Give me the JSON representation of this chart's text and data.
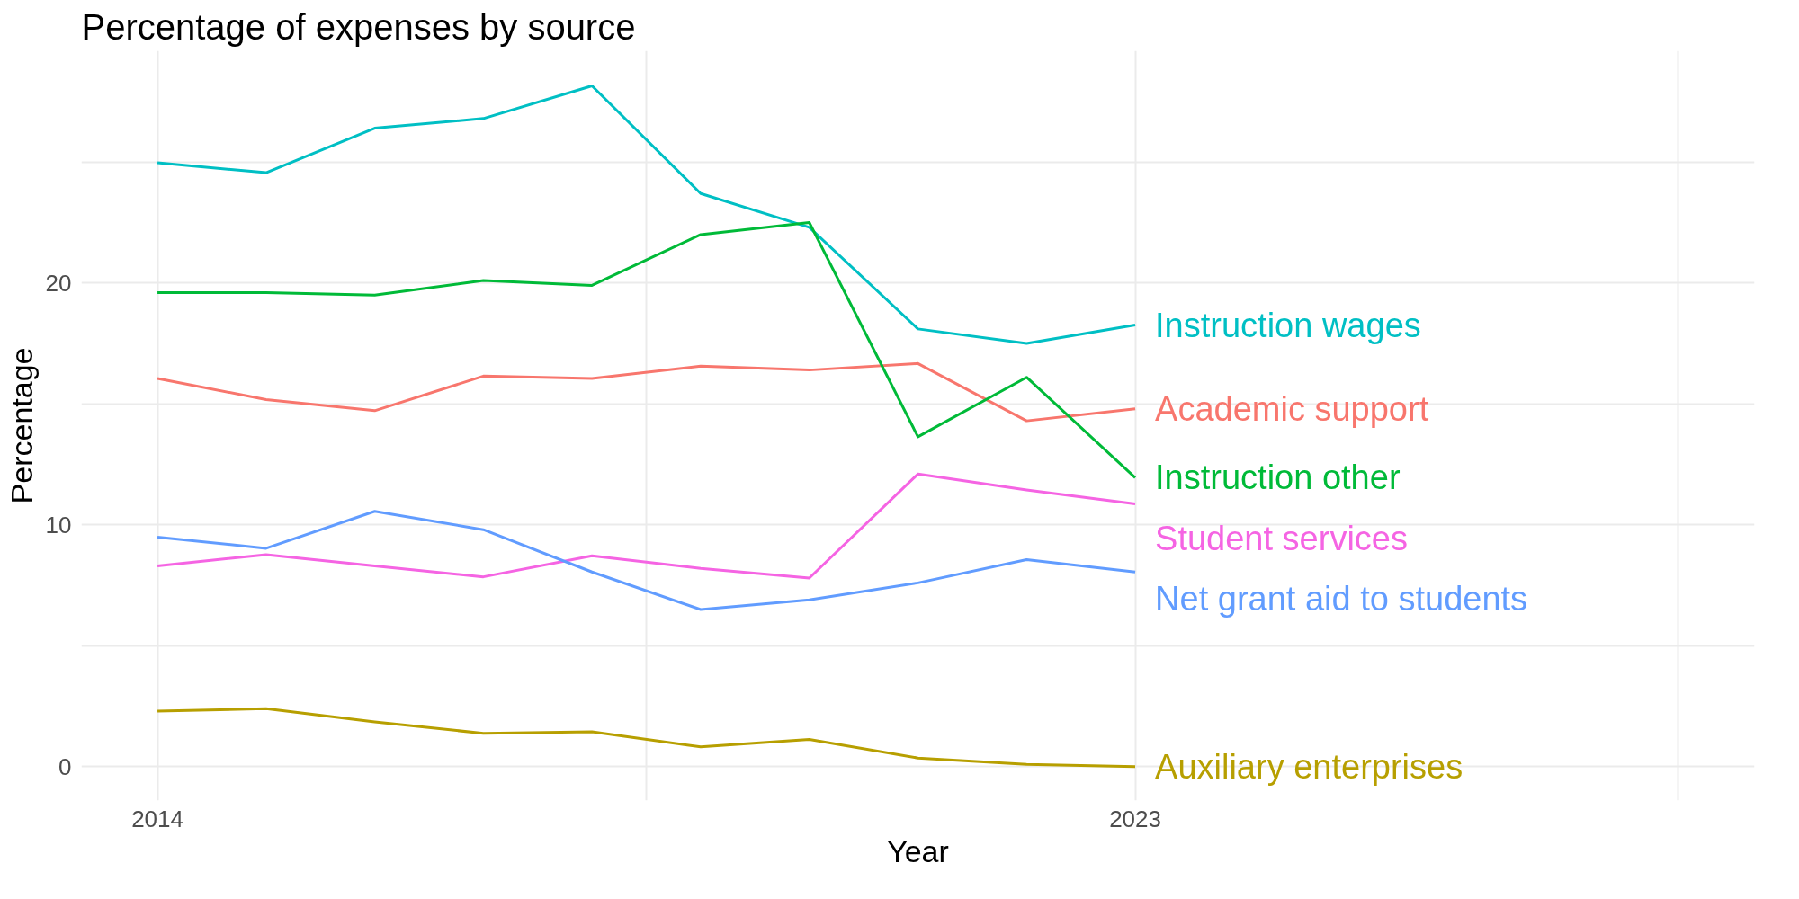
{
  "chart_data": {
    "type": "line",
    "title": "Percentage of expenses by source",
    "xlabel": "Year",
    "ylabel": "Percentage",
    "x": [
      2014,
      2015,
      2016,
      2017,
      2018,
      2019,
      2020,
      2021,
      2022,
      2023
    ],
    "xlim": [
      2013.3,
      2028.7
    ],
    "xticks": [
      2014,
      {
        "value": 2018.5,
        "label": null
      },
      2023,
      {
        "value": 2028,
        "label": null
      }
    ],
    "ylim": [
      -1.4,
      29.6
    ],
    "yticks": [
      0,
      {
        "value": 5,
        "label": null
      },
      10,
      {
        "value": 15,
        "label": null
      },
      20,
      {
        "value": 25,
        "label": null
      }
    ],
    "grid": true,
    "line_style": "solid",
    "series": [
      {
        "name": "Instruction wages",
        "color": "#00bfc4",
        "values": [
          24.97,
          24.56,
          26.4,
          26.8,
          28.15,
          23.7,
          22.3,
          18.1,
          17.5,
          18.26
        ]
      },
      {
        "name": "Academic support",
        "color": "#f8766d",
        "values": [
          16.05,
          15.18,
          14.72,
          16.15,
          16.05,
          16.56,
          16.4,
          16.67,
          14.3,
          14.8
        ]
      },
      {
        "name": "Instruction other",
        "color": "#00ba38",
        "values": [
          19.6,
          19.6,
          19.5,
          20.1,
          19.9,
          22.0,
          22.5,
          13.64,
          16.1,
          11.95
        ]
      },
      {
        "name": "Student services",
        "color": "#f564e3",
        "values": [
          8.3,
          8.77,
          8.3,
          7.85,
          8.72,
          8.2,
          7.8,
          12.1,
          11.44,
          10.87
        ]
      },
      {
        "name": "Net grant aid to students",
        "color": "#619cff",
        "values": [
          9.49,
          9.03,
          10.56,
          9.8,
          8.05,
          6.5,
          6.9,
          7.6,
          8.56,
          8.05
        ]
      },
      {
        "name": "Auxiliary enterprises",
        "color": "#b79f00",
        "values": [
          2.3,
          2.4,
          1.85,
          1.38,
          1.44,
          0.82,
          1.13,
          0.36,
          0.1,
          0.0
        ]
      }
    ]
  }
}
